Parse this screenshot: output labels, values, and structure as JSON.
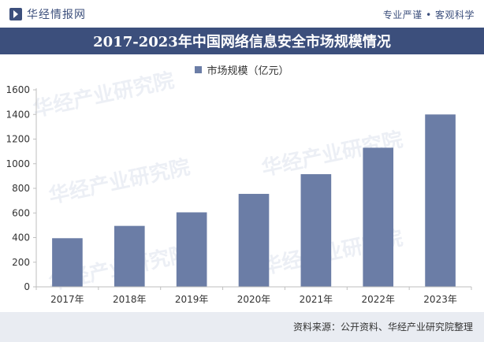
{
  "header": {
    "brand_name": "华经情报网",
    "slogan": "专业严谨 • 客观科学"
  },
  "chart_data": {
    "type": "bar",
    "title": "2017-2023年中国网络信息安全市场规模情况",
    "categories": [
      "2017年",
      "2018年",
      "2019年",
      "2020年",
      "2021年",
      "2022年",
      "2023年"
    ],
    "series": [
      {
        "name": "市场规模（亿元）",
        "values": [
          395,
          495,
          605,
          755,
          915,
          1130,
          1400
        ],
        "color": "#6b7da6"
      }
    ],
    "ylim": [
      0,
      1600
    ],
    "yticks": [
      0,
      200,
      400,
      600,
      800,
      1000,
      1200,
      1400,
      1600
    ],
    "grid": false,
    "legend_position": "top-center"
  },
  "footer": {
    "source": "资料来源：公开资料、华经产业研究院整理"
  },
  "watermark": {
    "text": "华经产业研究院"
  }
}
